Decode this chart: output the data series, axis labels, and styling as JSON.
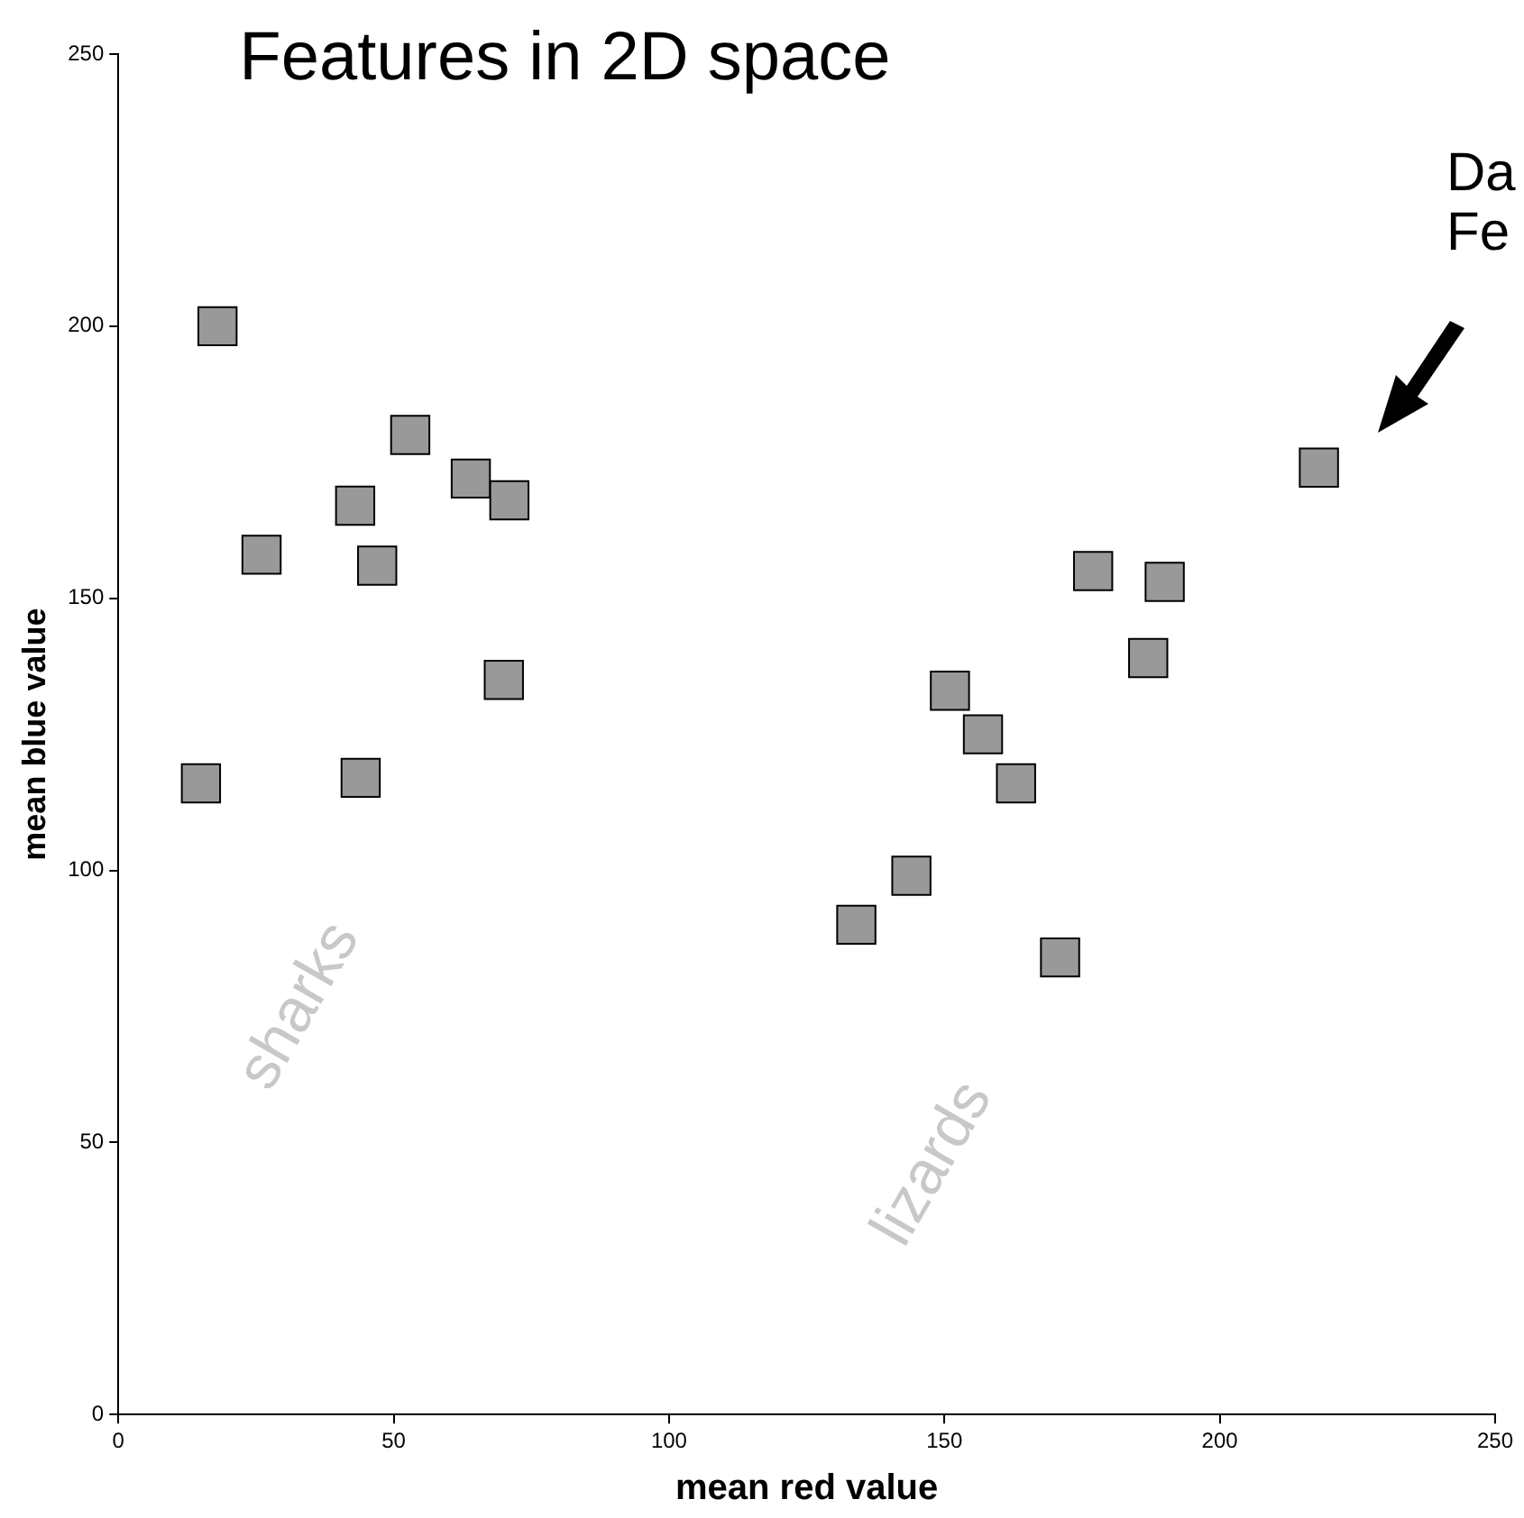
{
  "chart_data": {
    "type": "scatter",
    "title": "Features in 2D space",
    "xlabel": "mean red value",
    "ylabel": "mean blue value",
    "x": [
      18,
      26,
      43,
      53,
      64,
      71,
      47,
      70,
      44,
      15,
      218,
      177,
      190,
      187,
      151,
      157,
      163,
      144,
      134,
      171
    ],
    "values": [
      200,
      158,
      167,
      180,
      172,
      168,
      156,
      135,
      117,
      116,
      174,
      155,
      153,
      139,
      133,
      125,
      116,
      99,
      90,
      84
    ],
    "color": "#999999",
    "marker": "square",
    "xlim": [
      0,
      250
    ],
    "ylim": [
      0,
      250
    ],
    "xticks": [
      0,
      50,
      100,
      150,
      200,
      250
    ],
    "yticks": [
      0,
      50,
      100,
      150,
      200,
      250
    ],
    "grid": false,
    "legend": false,
    "annotations": [
      "sharks",
      "lizards",
      "Da\nFe"
    ]
  }
}
